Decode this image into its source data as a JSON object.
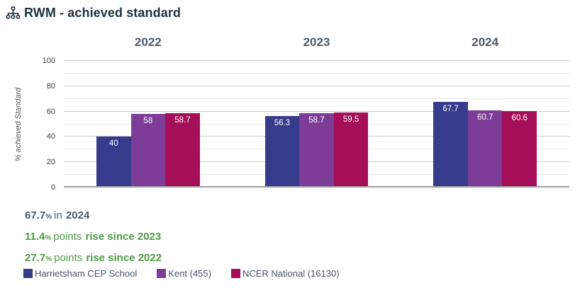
{
  "header": {
    "title": "RWM - achieved standard",
    "icon": "sitemap-icon"
  },
  "colors": {
    "title": "#1f3341",
    "slate": "#4a5a6e",
    "green": "#4e9b47",
    "school": "#363b8c",
    "kent": "#7d3c98",
    "ncer": "#a50e58"
  },
  "chart_data": {
    "type": "bar",
    "title": "RWM - achieved standard",
    "categories": [
      "2022",
      "2023",
      "2024"
    ],
    "series": [
      {
        "name": "Harrietsham CEP School",
        "color": "#363b8c",
        "values": [
          40,
          56.3,
          67.7
        ]
      },
      {
        "name": "Kent (455)",
        "color": "#7d3c98",
        "values": [
          58,
          58.7,
          60.7
        ]
      },
      {
        "name": "NCER National (16130)",
        "color": "#a50e58",
        "values": [
          58.7,
          59.5,
          60.6
        ]
      }
    ],
    "xlabel": "",
    "ylabel": "% achieved Standard",
    "ylim": [
      0,
      100
    ],
    "yticks": [
      0,
      20,
      40,
      60,
      80,
      100
    ],
    "grid": "horizontal",
    "bar_labels": true,
    "legend_position": "bottom"
  },
  "summary": {
    "lines": [
      {
        "value": "67.7",
        "unit": "%",
        "text": "in",
        "emphasis": "2024",
        "color": "#4a5a6e"
      },
      {
        "value": "11.4",
        "unit": "%",
        "text": "points",
        "emphasis": "rise since 2023",
        "color": "#4e9b47"
      },
      {
        "value": "27.7",
        "unit": "%",
        "text": "points",
        "emphasis": "rise since 2022",
        "color": "#4e9b47"
      }
    ]
  },
  "legend": [
    {
      "label": "Harrietsham CEP School",
      "color": "#363b8c"
    },
    {
      "label": "Kent (455)",
      "color": "#7d3c98"
    },
    {
      "label": "NCER National (16130)",
      "color": "#a50e58"
    }
  ]
}
